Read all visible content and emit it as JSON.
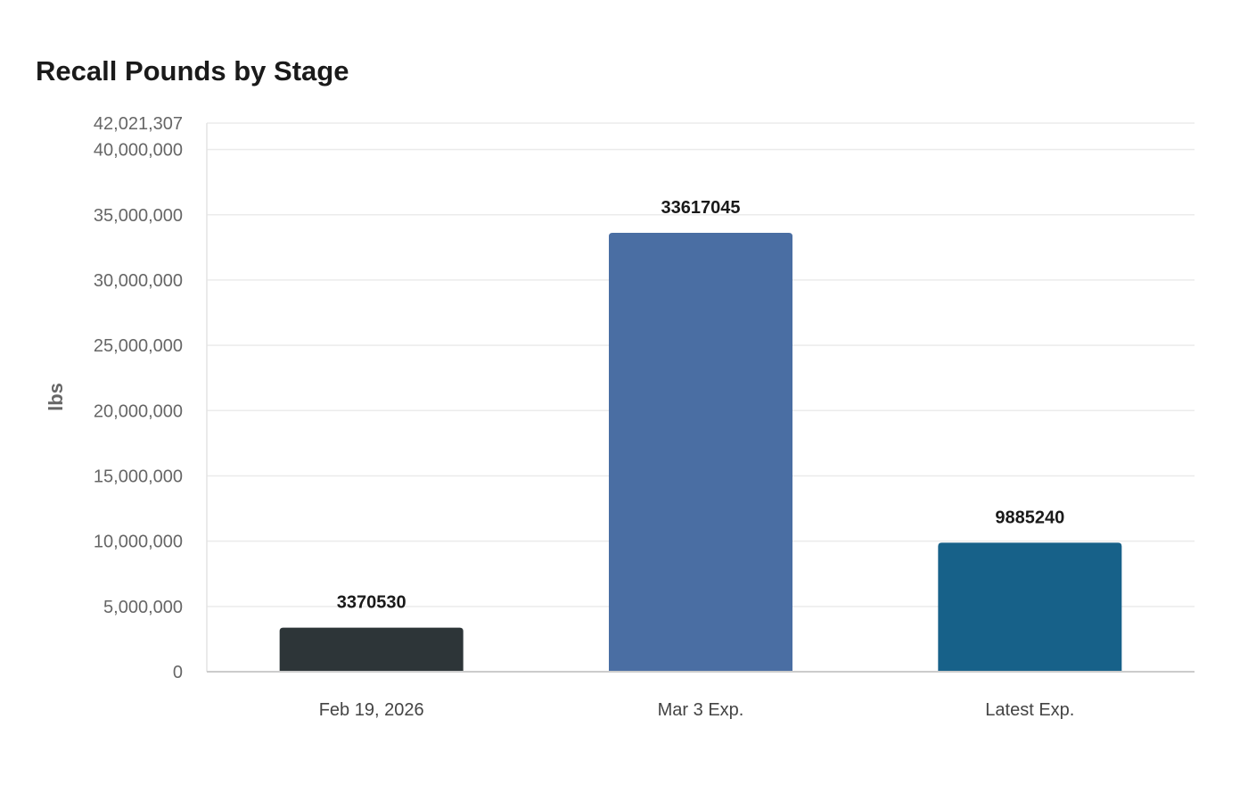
{
  "chart_data": {
    "type": "bar",
    "title": "Recall Pounds by Stage",
    "ylabel": "lbs",
    "xlabel": "",
    "categories": [
      "Feb 19, 2026",
      "Mar 3 Exp.",
      "Latest Exp."
    ],
    "values": [
      3370530,
      33617045,
      9885240
    ],
    "data_labels": [
      "3370530",
      "33617045",
      "9885240"
    ],
    "colors": [
      "#2d3538",
      "#4a6ea3",
      "#176189"
    ],
    "ylim": [
      0,
      42021307
    ],
    "yticks": [
      {
        "value": 0,
        "label": "0"
      },
      {
        "value": 5000000,
        "label": "5,000,000"
      },
      {
        "value": 10000000,
        "label": "10,000,000"
      },
      {
        "value": 15000000,
        "label": "15,000,000"
      },
      {
        "value": 20000000,
        "label": "20,000,000"
      },
      {
        "value": 25000000,
        "label": "25,000,000"
      },
      {
        "value": 30000000,
        "label": "30,000,000"
      },
      {
        "value": 35000000,
        "label": "35,000,000"
      },
      {
        "value": 40000000,
        "label": "40,000,000"
      },
      {
        "value": 42021307,
        "label": "42,021,307"
      }
    ],
    "grid": true,
    "legend": "none"
  }
}
